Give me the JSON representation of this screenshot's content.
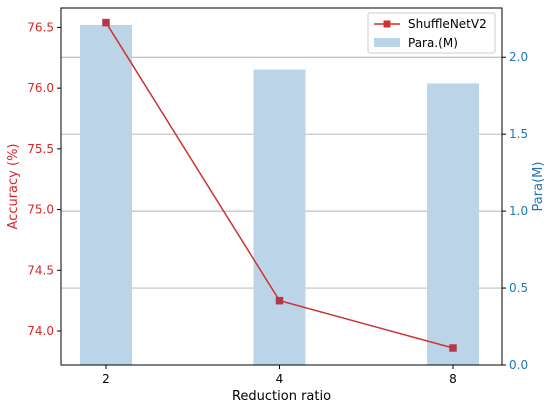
{
  "chart_data": {
    "type": "bar+line",
    "categories": [
      "2",
      "4",
      "8"
    ],
    "xlabel": "Reduction ratio",
    "left_axis": {
      "label": "Accuracy (%)",
      "color": "#d62728",
      "ylim": [
        73.72,
        76.66
      ],
      "ticks": [
        "74.0",
        "74.5",
        "75.0",
        "75.5",
        "76.0",
        "76.5"
      ]
    },
    "right_axis": {
      "label": "Para(M)",
      "color": "#1f77b4",
      "ylim": [
        0.0,
        2.32
      ],
      "ticks": [
        "0.0",
        "0.5",
        "1.0",
        "1.5",
        "2.0"
      ]
    },
    "series": [
      {
        "name": "ShuffleNetV2",
        "kind": "line",
        "axis": "left",
        "color": "#cc3333",
        "marker_color": "#b03a48",
        "values": [
          76.54,
          74.25,
          73.86
        ]
      },
      {
        "name": "Para.(M)",
        "kind": "bar",
        "axis": "right",
        "color": "#bcd4e8",
        "values": [
          2.21,
          1.92,
          1.83
        ]
      }
    ],
    "grid": "horizontal (right axis)",
    "legend_position": "top-right"
  }
}
